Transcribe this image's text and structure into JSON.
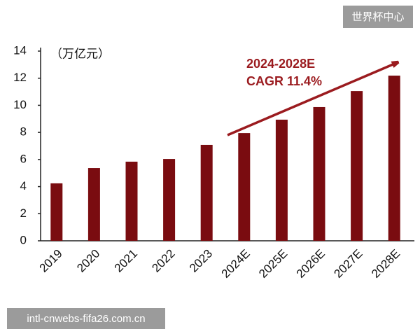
{
  "chart_data": {
    "type": "bar",
    "unit_label": "（万亿元）",
    "annotation": [
      "2024-2028E",
      "CAGR 11.4%"
    ],
    "categories": [
      "2019",
      "2020",
      "2021",
      "2022",
      "2023",
      "2024E",
      "2025E",
      "2026E",
      "2027E",
      "2028E"
    ],
    "values": [
      4.24,
      5.37,
      5.84,
      6.04,
      7.08,
      7.95,
      8.94,
      9.87,
      11.05,
      12.19
    ],
    "color": "#7a0c10",
    "ylim": [
      0,
      14
    ],
    "yticks": [
      0,
      2,
      4,
      6,
      8,
      10,
      12,
      14
    ],
    "grid": false
  },
  "watermark": "世界杯中心",
  "footer": "intl-cnwebs-fifa26.com.cn"
}
